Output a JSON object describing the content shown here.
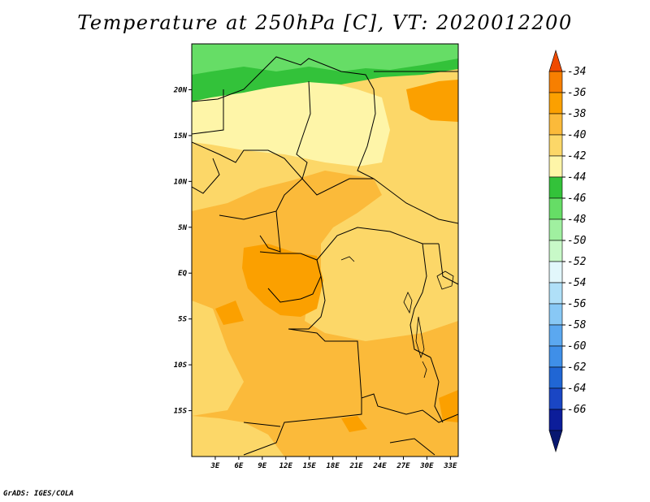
{
  "title": "Temperature at 250hPa [C], VT: 2020012200",
  "credit": "GrADS: IGES/COLA",
  "map": {
    "lon_range": [
      0,
      34
    ],
    "lat_range": [
      -20,
      25
    ],
    "lat_ticks": [
      "20N",
      "15N",
      "10N",
      "5N",
      "EQ",
      "5S",
      "10S",
      "15S"
    ],
    "lon_ticks": [
      "3E",
      "6E",
      "9E",
      "12E",
      "15E",
      "18E",
      "21E",
      "24E",
      "27E",
      "30E",
      "33E"
    ]
  },
  "colorbar": {
    "labels": [
      "-34",
      "-36",
      "-38",
      "-40",
      "-42",
      "-44",
      "-46",
      "-48",
      "-50",
      "-52",
      "-54",
      "-56",
      "-58",
      "-60",
      "-62",
      "-64",
      "-66"
    ],
    "colors": [
      "#f04a00",
      "#f77f00",
      "#fba000",
      "#fbba3a",
      "#fcd768",
      "#fef5a8",
      "#33c23a",
      "#66dd66",
      "#a0f0a0",
      "#c8f9c8",
      "#e2f7fb",
      "#b0e0f8",
      "#88c8f5",
      "#5ba8f0",
      "#3f8fe8",
      "#2066d4",
      "#1a46c4",
      "#0c1d9a",
      "#081870"
    ]
  }
}
